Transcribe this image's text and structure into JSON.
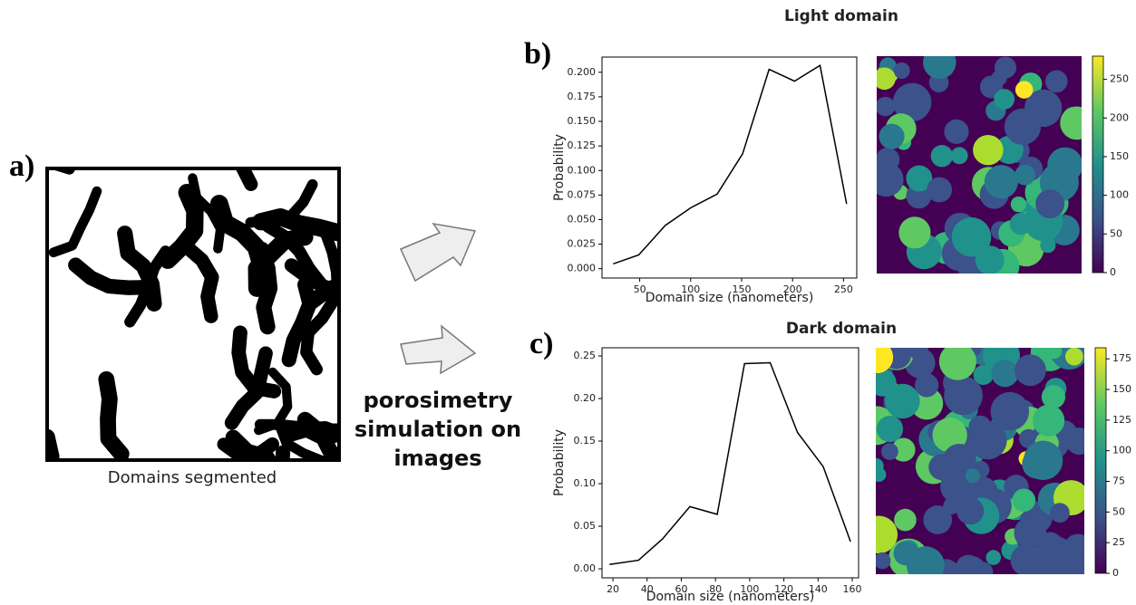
{
  "panel_labels": [
    "a)",
    "b)",
    "c)"
  ],
  "segmented_caption": "Domains segmented",
  "method_lines": [
    "porosimetry",
    "simulation on",
    "images"
  ],
  "chart_data": [
    {
      "type": "line",
      "title": "Light domain",
      "xlabel": "Domain size (nanometers)",
      "ylabel": "Probability",
      "color": "#000000",
      "x": [
        24,
        49,
        75,
        100,
        126,
        151,
        177,
        202,
        227,
        253
      ],
      "values": [
        0.005,
        0.014,
        0.044,
        0.062,
        0.076,
        0.117,
        0.203,
        0.191,
        0.207,
        0.066
      ],
      "xlim": [
        13,
        263
      ],
      "xticks": [
        50,
        100,
        150,
        200,
        250
      ],
      "ylim": [
        -0.0095,
        0.2155
      ],
      "yticks": [
        {
          "value": 0,
          "label": "0.000"
        },
        {
          "value": 0.025,
          "label": "0.025"
        },
        {
          "value": 0.05,
          "label": "0.050"
        },
        {
          "value": 0.075,
          "label": "0.075"
        },
        {
          "value": 0.1,
          "label": "0.100"
        },
        {
          "value": 0.125,
          "label": "0.125"
        },
        {
          "value": 0.15,
          "label": "0.150"
        },
        {
          "value": 0.175,
          "label": "0.175"
        },
        {
          "value": 0.2,
          "label": "0.200"
        }
      ],
      "colorbar": {
        "colormap": "viridis",
        "lim": [
          0,
          280
        ],
        "ticks": [
          0,
          50,
          100,
          150,
          200,
          250
        ]
      }
    },
    {
      "type": "line",
      "title": "Dark domain",
      "xlabel": "Domain size (nanometers)",
      "ylabel": "Probability",
      "color": "#000000",
      "x": [
        18,
        35,
        49,
        65,
        81,
        97,
        112,
        128,
        143,
        159
      ],
      "values": [
        0.005,
        0.01,
        0.035,
        0.073,
        0.064,
        0.241,
        0.242,
        0.16,
        0.12,
        0.032
      ],
      "xlim": [
        13.6,
        163.7
      ],
      "xticks": [
        20,
        40,
        60,
        80,
        100,
        120,
        140,
        160
      ],
      "ylim": [
        -0.0106,
        0.2596
      ],
      "yticks": [
        {
          "value": 0,
          "label": "0.00"
        },
        {
          "value": 0.05,
          "label": "0.05"
        },
        {
          "value": 0.1,
          "label": "0.10"
        },
        {
          "value": 0.15,
          "label": "0.15"
        },
        {
          "value": 0.2,
          "label": "0.20"
        },
        {
          "value": 0.25,
          "label": "0.25"
        }
      ],
      "colorbar": {
        "colormap": "viridis",
        "lim": [
          0,
          184
        ],
        "ticks": [
          0,
          25,
          50,
          75,
          100,
          125,
          150,
          175
        ]
      }
    }
  ]
}
